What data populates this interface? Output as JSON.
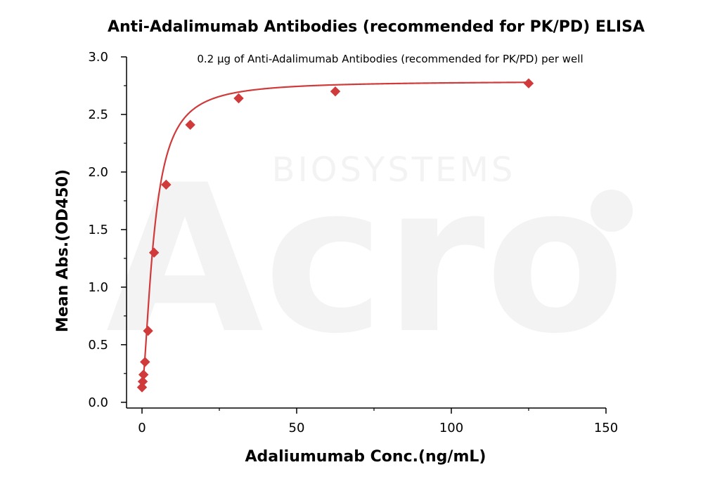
{
  "chart_data": {
    "type": "scatter",
    "title": "Anti-Adalimumab Antibodies (recommended for PK/PD) ELISA",
    "subtitle": "0.2 µg of Anti-Adalimumab Antibodies (recommended for PK/PD) per well",
    "xlabel": "Adaliumumab  Conc.(ng/mL)",
    "ylabel": "Mean Abs.(OD450)",
    "xlim": [
      -5,
      150
    ],
    "ylim": [
      -0.05,
      3.0
    ],
    "x_ticks": [
      0,
      50,
      100,
      150
    ],
    "x_tick_labels": [
      "0",
      "50",
      "100",
      "150"
    ],
    "y_ticks": [
      0.0,
      0.5,
      1.0,
      1.5,
      2.0,
      2.5,
      3.0
    ],
    "y_tick_labels": [
      "0.0",
      "0.5",
      "1.0",
      "1.5",
      "2.0",
      "2.5",
      "3.0"
    ],
    "grid": false,
    "series": [
      {
        "x": [
          0.0,
          0.24,
          0.49,
          0.98,
          1.95,
          3.9,
          7.8,
          15.6,
          31.25,
          62.5,
          125
        ],
        "y": [
          0.13,
          0.18,
          0.24,
          0.35,
          0.62,
          1.3,
          1.89,
          2.41,
          2.64,
          2.7,
          2.77
        ],
        "marker": "diamond",
        "color": "#d03a3a",
        "fit": "4PL"
      }
    ],
    "fit_params": {
      "bottom": 0.13,
      "top": 2.79,
      "ec50": 3.9,
      "hill": 1.58
    },
    "watermark": {
      "logo": "Acro",
      "sub": "BIOSYSTEMS"
    }
  }
}
